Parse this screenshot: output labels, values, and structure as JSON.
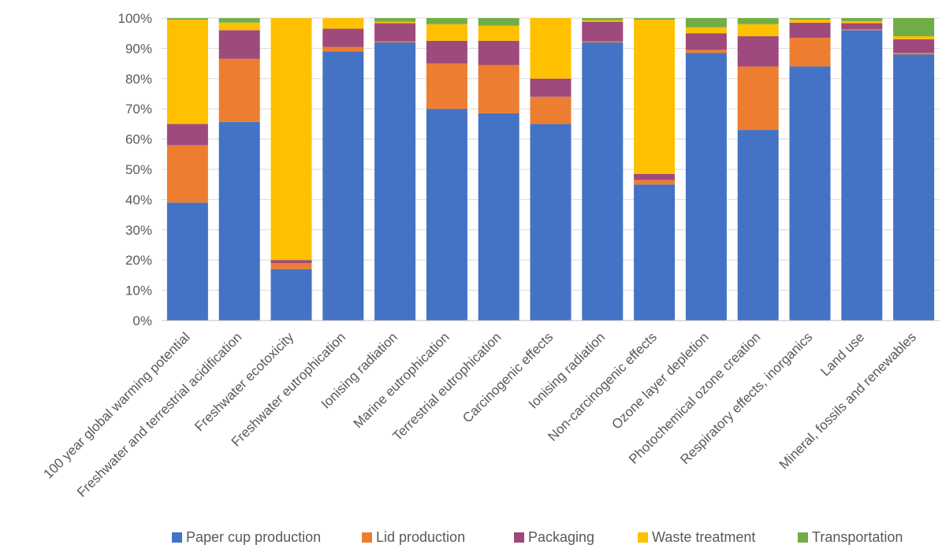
{
  "chart_data": {
    "type": "bar",
    "stacked": true,
    "percent_stacked": true,
    "title": "",
    "xlabel": "",
    "ylabel": "",
    "ylim": [
      0,
      100
    ],
    "yticks": [
      "0%",
      "10%",
      "20%",
      "30%",
      "40%",
      "50%",
      "60%",
      "70%",
      "80%",
      "90%",
      "100%"
    ],
    "grid": true,
    "legend_position": "bottom",
    "categories": [
      "100 year global warming potential",
      "Freshwater and terrestrial acidification",
      "Freshwater ecotoxicity",
      "Freshwater eutrophication",
      "Ionising radiation",
      "Marine eutrophication",
      "Terrestrial eutrophication",
      "Carcinogenic effects",
      "Ionising radiation",
      "Non-carcinogenic effects",
      "Ozone layer depletion",
      "Photochemical ozone creation",
      "Respiratory effects, inorganics",
      "Land use",
      "Mineral, fossils and renewables"
    ],
    "series": [
      {
        "name": "Paper cup production",
        "color": "#4472C4",
        "values": [
          39,
          66,
          17,
          89,
          92,
          70,
          68.5,
          65,
          92,
          45,
          88.5,
          63,
          84,
          96,
          88
        ]
      },
      {
        "name": "Lid production",
        "color": "#ED7D31",
        "values": [
          19,
          21,
          2,
          1.5,
          0.3,
          15,
          16,
          9,
          0.3,
          1.5,
          1,
          21,
          9.5,
          0.3,
          0.5
        ]
      },
      {
        "name": "Packaging",
        "color": "#9E4A7C",
        "values": [
          7,
          9.5,
          1,
          6,
          6,
          7.5,
          8,
          6,
          6.5,
          2,
          5.5,
          10,
          5,
          2,
          4.5
        ]
      },
      {
        "name": "Waste treatment",
        "color": "#FFC000",
        "values": [
          34.5,
          2.5,
          80,
          3.5,
          0.5,
          5.5,
          5,
          20,
          0.5,
          51,
          2,
          4,
          1,
          0.7,
          1
        ]
      },
      {
        "name": "Transportation",
        "color": "#70AD47",
        "values": [
          0.5,
          1.5,
          0,
          0,
          1.2,
          2,
          2.5,
          0,
          0.7,
          0.5,
          3,
          2,
          0.5,
          1,
          6
        ]
      }
    ]
  }
}
